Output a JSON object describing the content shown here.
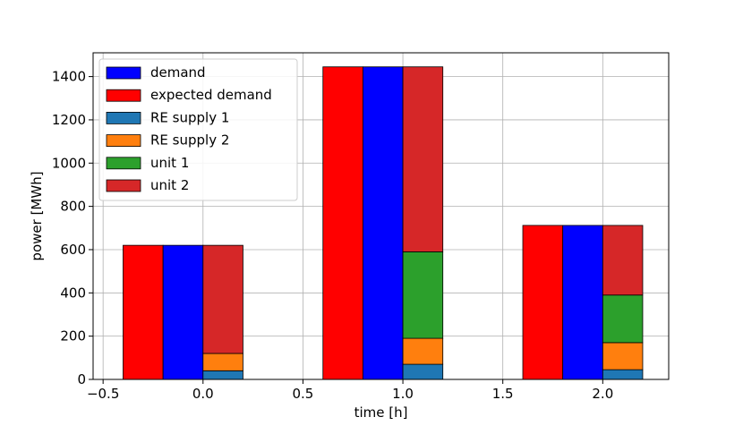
{
  "chart_data": {
    "type": "bar",
    "xlabel": "time [h]",
    "ylabel": "power [MWh]",
    "xlim": [
      -0.55,
      2.33
    ],
    "ylim": [
      0,
      1510
    ],
    "xticks": [
      -0.5,
      0.0,
      0.5,
      1.0,
      1.5,
      2.0
    ],
    "xtick_labels": [
      "−0.5",
      "0.0",
      "0.5",
      "1.0",
      "1.5",
      "2.0"
    ],
    "yticks": [
      0,
      200,
      400,
      600,
      800,
      1000,
      1200,
      1400
    ],
    "ytick_labels": [
      "0",
      "200",
      "400",
      "600",
      "800",
      "1000",
      "1200",
      "1400"
    ],
    "grid": true,
    "legend_position": "top-left",
    "bar_width": 0.2,
    "times": [
      0,
      1,
      2
    ],
    "series": [
      {
        "name": "demand",
        "color": "#0000ff",
        "values": [
          620,
          1445,
          712
        ]
      },
      {
        "name": "expected demand",
        "color": "#ff0000",
        "values": [
          620,
          1445,
          712
        ]
      },
      {
        "name": "RE supply 1",
        "color": "#1f77b4",
        "values": [
          40,
          70,
          45
        ]
      },
      {
        "name": "RE supply 2",
        "color": "#ff7f0e",
        "values": [
          80,
          120,
          125
        ]
      },
      {
        "name": "unit 1",
        "color": "#2ca02c",
        "values": [
          0,
          400,
          220
        ]
      },
      {
        "name": "unit 2",
        "color": "#d62728",
        "values": [
          500,
          855,
          322
        ]
      }
    ]
  }
}
